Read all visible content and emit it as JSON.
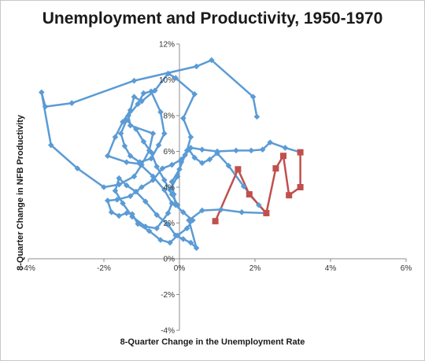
{
  "chart_data": {
    "type": "scatter",
    "title": "Unemployment and Productivity, 1950-1970",
    "xlabel": "8-Quarter Change in the Unemployment Rate",
    "ylabel": "8-Quarter Change in NFB Productivity",
    "xlim": [
      -0.04,
      0.06
    ],
    "ylim": [
      -0.04,
      0.12
    ],
    "x_ticks": [
      -0.04,
      -0.02,
      0,
      0.02,
      0.04,
      0.06
    ],
    "x_tick_labels": [
      "-4%",
      "-2%",
      "0%",
      "2%",
      "4%",
      "6%"
    ],
    "y_ticks": [
      -0.04,
      -0.02,
      0,
      0.02,
      0.04,
      0.06,
      0.08,
      0.1,
      0.12
    ],
    "y_tick_labels": [
      "-4%",
      "-2%",
      "0%",
      "2%",
      "4%",
      "6%",
      "8%",
      "10%",
      "12%"
    ],
    "grid": false,
    "legend": "none",
    "series": [
      {
        "color": "#5b9bd5",
        "marker": "diamond",
        "points": [
          [
            0.0205,
            0.0794
          ],
          [
            0.0195,
            0.0905
          ],
          [
            0.0085,
            0.111
          ],
          [
            0.0045,
            0.1075
          ],
          [
            -0.012,
            0.0995
          ],
          [
            -0.0285,
            0.087
          ],
          [
            -0.0355,
            0.085
          ],
          [
            -0.0365,
            0.093
          ],
          [
            -0.034,
            0.0635
          ],
          [
            -0.027,
            0.0505
          ],
          [
            -0.02,
            0.04
          ],
          [
            -0.016,
            0.0415
          ],
          [
            -0.012,
            0.046
          ],
          [
            -0.01,
            0.0525
          ],
          [
            -0.008,
            0.0605
          ],
          [
            -0.007,
            0.07
          ],
          [
            -0.013,
            0.0745
          ],
          [
            -0.0135,
            0.08
          ],
          [
            -0.011,
            0.0865
          ],
          [
            -0.0095,
            0.0925
          ],
          [
            -0.0075,
            0.0935
          ],
          [
            -0.005,
            0.082
          ],
          [
            -0.004,
            0.07
          ],
          [
            -0.0055,
            0.0635
          ],
          [
            -0.0075,
            0.056
          ],
          [
            -0.0105,
            0.054
          ],
          [
            -0.013,
            0.0575
          ],
          [
            -0.0145,
            0.063
          ],
          [
            -0.0155,
            0.07
          ],
          [
            -0.014,
            0.0775
          ],
          [
            -0.0115,
            0.0725
          ],
          [
            -0.0095,
            0.0655
          ],
          [
            -0.0075,
            0.0595
          ],
          [
            -0.006,
            0.0515
          ],
          [
            -0.004,
            0.044
          ],
          [
            -0.002,
            0.036
          ],
          [
            -0.0005,
            0.03
          ],
          [
            -0.0025,
            0.0385
          ],
          [
            -0.0005,
            0.046
          ],
          [
            0.0005,
            0.054
          ],
          [
            0.002,
            0.0605
          ],
          [
            0.003,
            0.068
          ],
          [
            0.001,
            0.0785
          ],
          [
            0.004,
            0.092
          ],
          [
            -0.001,
            0.101
          ],
          [
            -0.003,
            0.1035
          ],
          [
            -0.0065,
            0.094
          ],
          [
            -0.01,
            0.088
          ],
          [
            -0.012,
            0.0905
          ],
          [
            -0.013,
            0.083
          ],
          [
            -0.015,
            0.0765
          ],
          [
            -0.017,
            0.068
          ],
          [
            -0.019,
            0.0575
          ],
          [
            -0.014,
            0.054
          ],
          [
            -0.0105,
            0.053
          ],
          [
            -0.007,
            0.046
          ],
          [
            -0.004,
            0.0385
          ],
          [
            -0.002,
            0.031
          ],
          [
            -0.003,
            0.0255
          ],
          [
            -0.006,
            0.017
          ],
          [
            -0.009,
            0.018
          ],
          [
            -0.0125,
            0.0235
          ],
          [
            -0.015,
            0.031
          ],
          [
            -0.017,
            0.038
          ],
          [
            -0.016,
            0.045
          ],
          [
            -0.014,
            0.041
          ],
          [
            -0.0115,
            0.0375
          ],
          [
            -0.009,
            0.032
          ],
          [
            -0.006,
            0.0245
          ],
          [
            -0.003,
            0.019
          ],
          [
            -0.001,
            0.013
          ],
          [
            0.001,
            0.011
          ],
          [
            0.003,
            0.009
          ],
          [
            0.0045,
            0.006
          ],
          [
            0.0025,
            0.0215
          ],
          [
            0.006,
            0.027
          ],
          [
            0.011,
            0.0275
          ],
          [
            0.0165,
            0.026
          ],
          [
            0.023,
            0.0255
          ],
          [
            0.021,
            0.03
          ],
          [
            0.017,
            0.0405
          ],
          [
            0.013,
            0.052
          ],
          [
            0.01,
            0.059
          ],
          [
            0.008,
            0.0555
          ],
          [
            0.006,
            0.0535
          ],
          [
            0.004,
            0.0565
          ],
          [
            0.0025,
            0.061
          ],
          [
            0.0005,
            0.0555
          ],
          [
            -0.002,
            0.0525
          ],
          [
            -0.0045,
            0.0505
          ],
          [
            -0.007,
            0.044
          ],
          [
            -0.01,
            0.04
          ],
          [
            -0.013,
            0.035
          ],
          [
            -0.0165,
            0.033
          ],
          [
            -0.019,
            0.0325
          ],
          [
            -0.018,
            0.026
          ],
          [
            -0.016,
            0.024
          ],
          [
            -0.014,
            0.0255
          ],
          [
            -0.0125,
            0.025
          ],
          [
            -0.011,
            0.0195
          ],
          [
            -0.008,
            0.0155
          ],
          [
            -0.005,
            0.0105
          ],
          [
            -0.0025,
            0.009
          ],
          [
            -0.0005,
            0.013
          ],
          [
            0.002,
            0.017
          ],
          [
            0.0035,
            0.0215
          ],
          [
            0.001,
            0.026
          ],
          [
            -0.001,
            0.03
          ],
          [
            -0.0015,
            0.036
          ],
          [
            -0.002,
            0.043
          ],
          [
            0.0,
            0.05
          ],
          [
            0.0015,
            0.058
          ],
          [
            0.003,
            0.062
          ],
          [
            0.006,
            0.061
          ],
          [
            0.01,
            0.06
          ],
          [
            0.015,
            0.0605
          ],
          [
            0.019,
            0.0605
          ],
          [
            0.022,
            0.061
          ],
          [
            0.024,
            0.065
          ],
          [
            0.028,
            0.062
          ],
          [
            0.032,
            0.0595
          ]
        ]
      },
      {
        "color": "#c0504d",
        "marker": "square",
        "points": [
          [
            0.032,
            0.0595
          ],
          [
            0.032,
            0.04
          ],
          [
            0.029,
            0.0355
          ],
          [
            0.0275,
            0.0575
          ],
          [
            0.0255,
            0.0505
          ],
          [
            0.023,
            0.0255
          ],
          [
            0.0185,
            0.036
          ],
          [
            0.0155,
            0.05
          ],
          [
            0.0095,
            0.021
          ]
        ]
      }
    ]
  }
}
